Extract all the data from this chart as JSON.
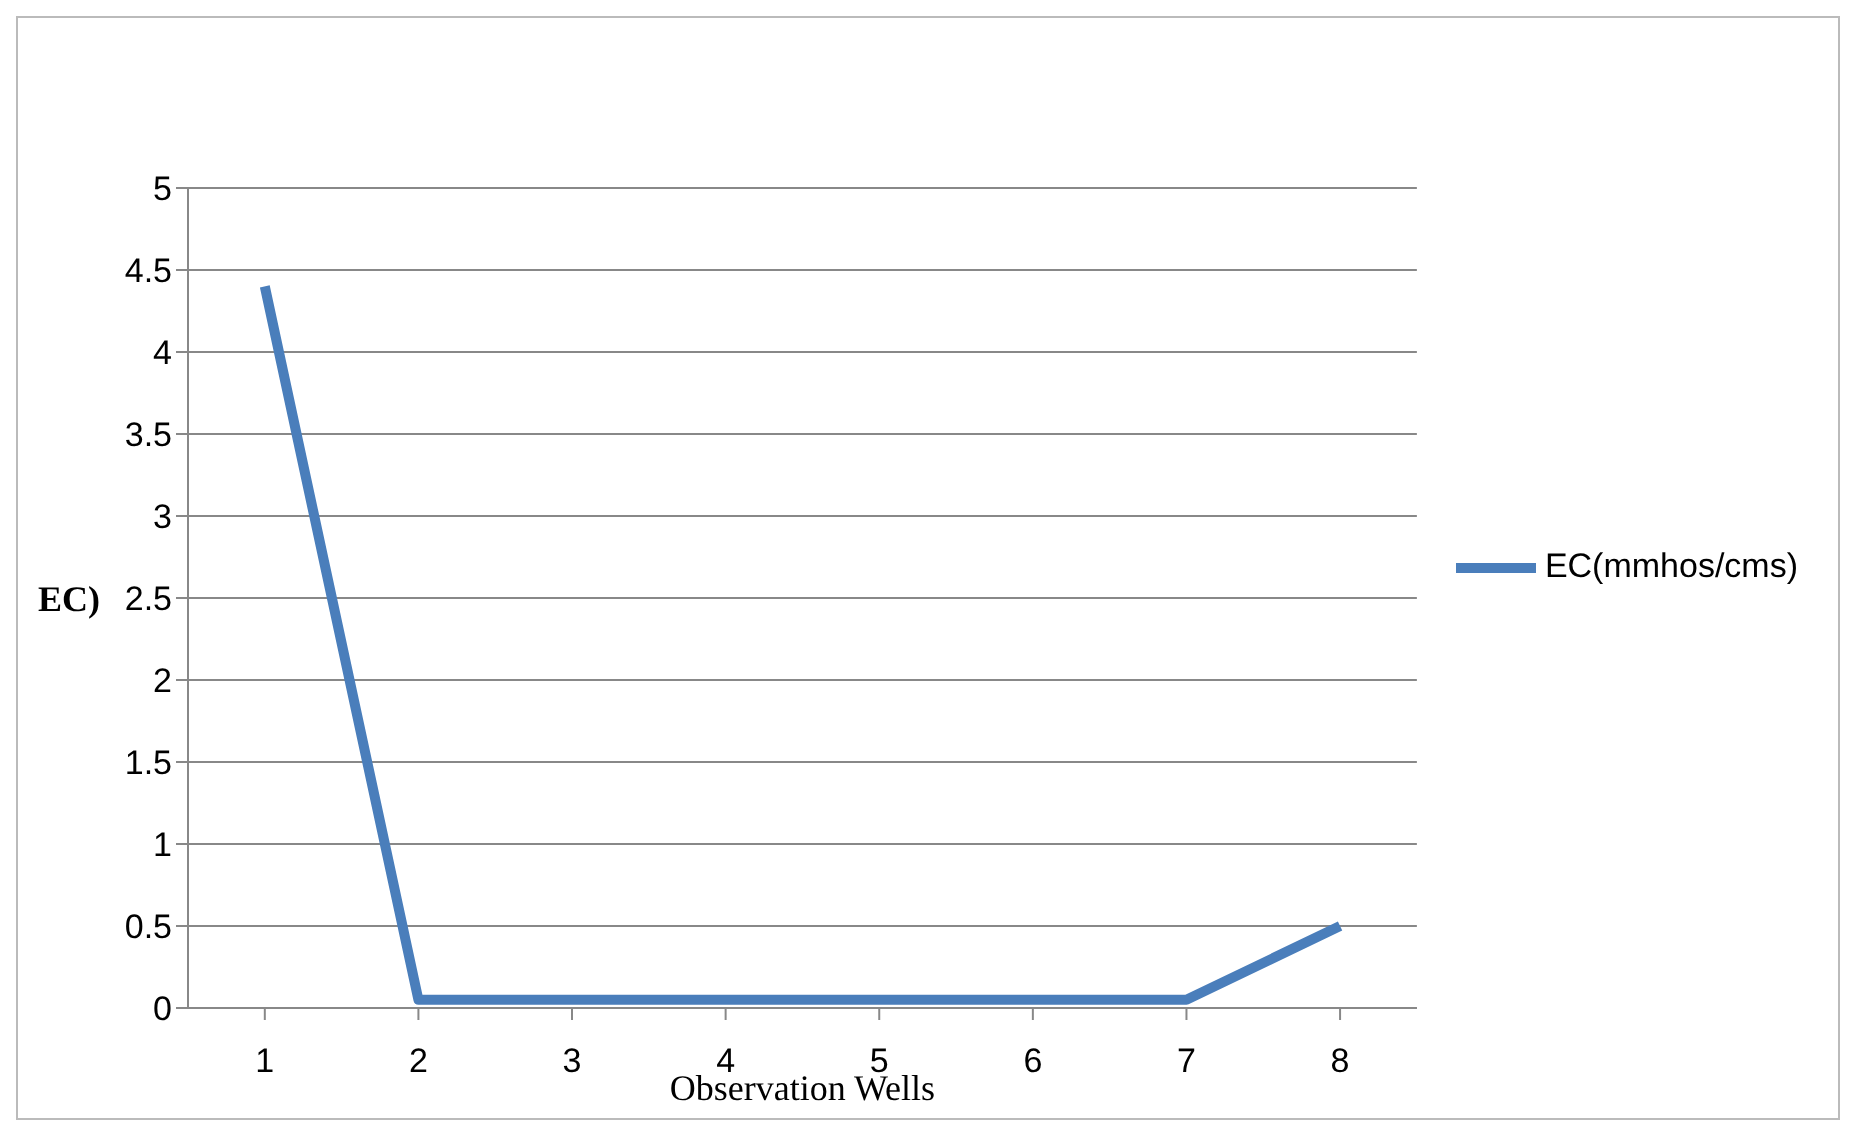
{
  "chart_data": {
    "type": "line",
    "xlabel": "Observation Wells",
    "ylabel": "EC)",
    "categories": [
      "1",
      "2",
      "3",
      "4",
      "5",
      "6",
      "7",
      "8"
    ],
    "series": [
      {
        "name": "EC(mmhos/cms)",
        "color": "#4a7ebb",
        "values": [
          4.4,
          0.05,
          0.05,
          0.05,
          0.05,
          0.05,
          0.05,
          0.5
        ]
      }
    ],
    "ylim": [
      0,
      5
    ],
    "yticks": [
      0,
      0.5,
      1,
      1.5,
      2,
      2.5,
      3,
      3.5,
      4,
      4.5,
      5
    ],
    "grid": "y",
    "legend": "right",
    "marker": "none",
    "line_style": "solid"
  }
}
